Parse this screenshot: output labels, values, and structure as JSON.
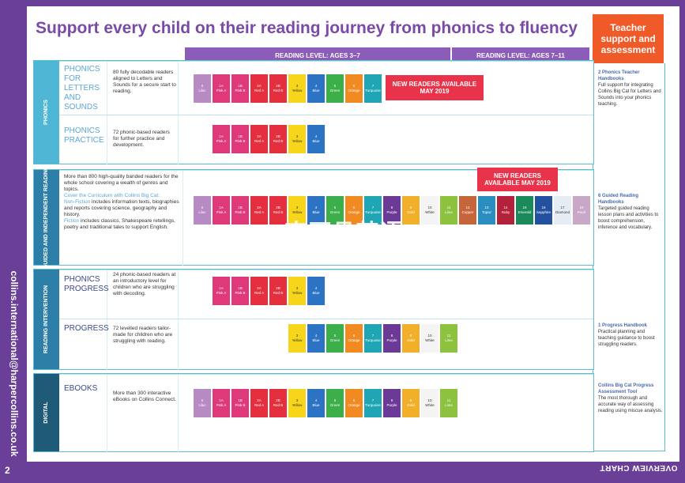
{
  "title": "Support every child on their reading journey from phonics to fluency",
  "side_email": "collins.international@harpercollins.co.uk",
  "page_number": "2",
  "footer_label": "OVERVIEW CHART",
  "teacher_box": "Teacher support and assessment",
  "reading_levels": {
    "left": "READING LEVEL: AGES 3–7",
    "right": "READING LEVEL: AGES 7–11"
  },
  "new_readers": "NEW READERS AVAILABLE MAY 2019",
  "levels": [
    {
      "num": "0",
      "name": "Lilac",
      "color": "#b78ac4"
    },
    {
      "num": "1A",
      "name": "Pink A",
      "color": "#e0397a"
    },
    {
      "num": "1B",
      "name": "Pink B",
      "color": "#e0397a"
    },
    {
      "num": "2A",
      "name": "Red A",
      "color": "#e52f3e"
    },
    {
      "num": "2B",
      "name": "Red B",
      "color": "#e52f3e"
    },
    {
      "num": "3",
      "name": "Yellow",
      "color": "#f7d51a"
    },
    {
      "num": "4",
      "name": "Blue",
      "color": "#2c73c4"
    },
    {
      "num": "5",
      "name": "Green",
      "color": "#3cae4a"
    },
    {
      "num": "6",
      "name": "Orange",
      "color": "#f28a22"
    },
    {
      "num": "7",
      "name": "Turquoise",
      "color": "#1fa5b4"
    },
    {
      "num": "8",
      "name": "Purple",
      "color": "#6b3a97"
    },
    {
      "num": "9",
      "name": "Gold",
      "color": "#f2b02a"
    },
    {
      "num": "10",
      "name": "White",
      "color": "#f4f4f4"
    },
    {
      "num": "11",
      "name": "Lime",
      "color": "#8cc23e"
    },
    {
      "num": "12",
      "name": "Copper",
      "color": "#c7653a"
    },
    {
      "num": "13",
      "name": "Topaz",
      "color": "#2a8fc0"
    },
    {
      "num": "14",
      "name": "Ruby",
      "color": "#b4213a"
    },
    {
      "num": "15",
      "name": "Emerald",
      "color": "#1a8a5a"
    },
    {
      "num": "16",
      "name": "Sapphire",
      "color": "#2450a0"
    },
    {
      "num": "17",
      "name": "Diamond",
      "color": "#e6ecf3"
    },
    {
      "num": "18",
      "name": "Pearl",
      "color": "#c9a7c7"
    }
  ],
  "sections": {
    "phonics": {
      "label": "PHONICS",
      "color": "#4fb7d5"
    },
    "guided": {
      "label": "GUIDED AND INDEPENDENT READING",
      "color": "#2d7fa8"
    },
    "intervention": {
      "label": "READING INTERVENTION",
      "color": "#2d7fa8"
    },
    "digital": {
      "label": "DIGITAL",
      "color": "#1f5b78"
    }
  },
  "rows": {
    "phonics_lsa": {
      "name": "PHONICS FOR LETTERS AND SOUNDS",
      "desc": "80 fully decodable readers aligned to Letters and Sounds for a secure start to reading."
    },
    "phonics_practice": {
      "name": "PHONICS PRACTICE",
      "desc": "72 phonic-based readers for further practice and development."
    },
    "guided": {
      "line1": "More than 800 high-quality banded readers for the whole school covering a wealth of genres and topics.",
      "line2": "Cover the Curriculum with Collins Big Cat:",
      "line3a": "Non-Fiction",
      "line3b": " includes information texts, biographies and reports covering science, geography and history.",
      "line4a": "Fiction",
      "line4b": " includes classics, Shakespeare retellings, poetry and traditional tales to support English."
    },
    "phonics_progress": {
      "name": "PHONICS PROGRESS",
      "desc": "24 phonic-based readers at an introductory level for children who are struggling with decoding."
    },
    "progress": {
      "name": "PROGRESS",
      "desc": "72 levelled readers tailor-made for children who are struggling with reading."
    },
    "ebooks": {
      "name": "EBOOKS",
      "desc": "More than 300 interactive eBooks on Collins Connect."
    }
  },
  "teacher_notes": {
    "n1": {
      "title": "2 Phonics Teacher Handbooks",
      "body": "Full support for integrating Collins Big Cat for Letters and Sounds into your phonics teaching."
    },
    "n2": {
      "title": "6 Guided Reading Handbooks",
      "body": "Targeted guided reading lesson plans and activities to boost comprehension, inference and vocabulary."
    },
    "n3": {
      "title": "1 Progress Handbook",
      "body": "Practical planning and teaching guidance to boost struggling readers."
    },
    "n4": {
      "title": "Collins Big Cat Progress Assessment Tool",
      "body": "The most thorough and accurate way of assessing reading using miscue analysis."
    }
  },
  "watermark": "M·李开具英语"
}
